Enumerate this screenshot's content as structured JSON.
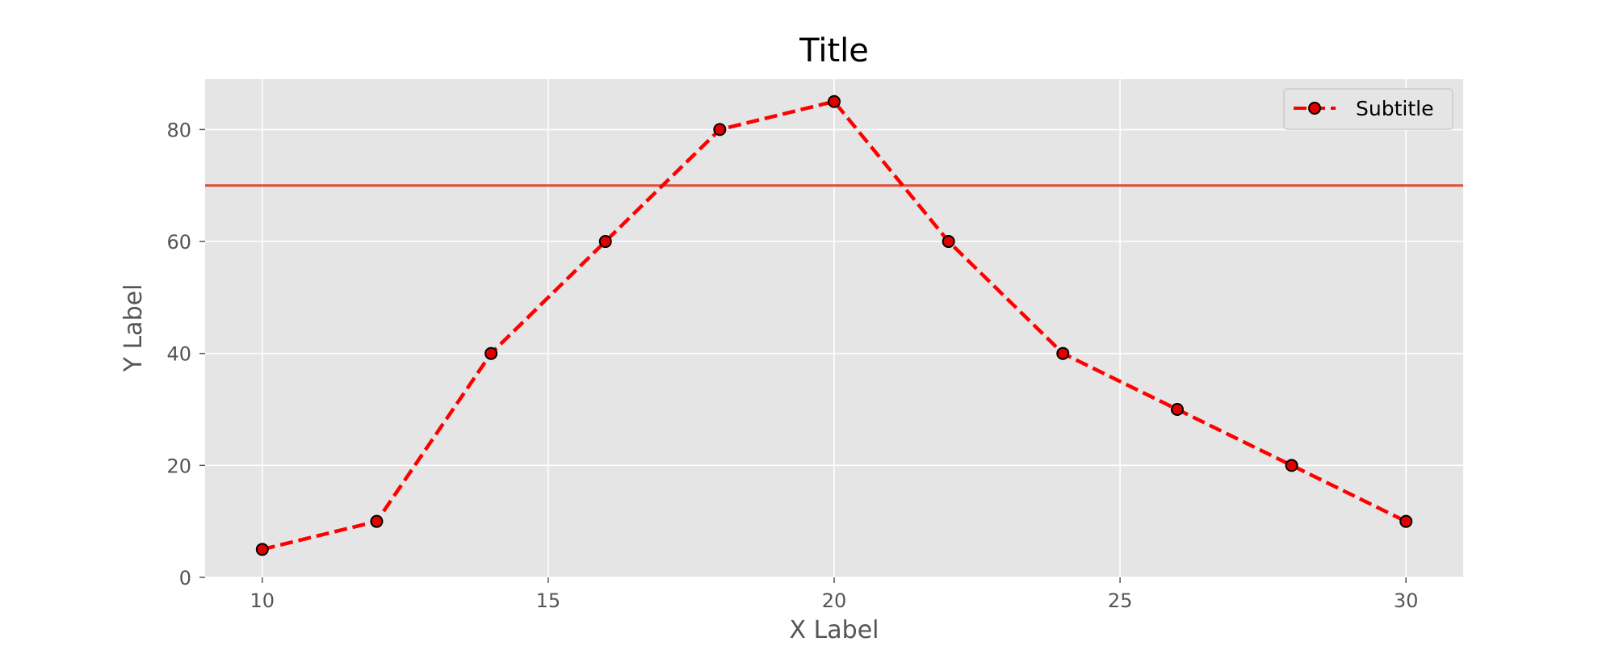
{
  "chart_data": {
    "type": "line",
    "title": "Title",
    "xlabel": "X Label",
    "ylabel": "Y Label",
    "xlim": [
      9,
      31
    ],
    "ylim": [
      0,
      89
    ],
    "xticks": [
      10,
      15,
      20,
      25,
      30
    ],
    "yticks": [
      0,
      20,
      40,
      60,
      80
    ],
    "grid": true,
    "legend_position": "upper right",
    "series": [
      {
        "name": "Subtitle",
        "x": [
          10,
          12,
          14,
          16,
          18,
          20,
          22,
          24,
          26,
          28,
          30
        ],
        "y": [
          5,
          10,
          40,
          60,
          80,
          85,
          60,
          40,
          30,
          20,
          10
        ],
        "line_color": "#ff0000",
        "line_style": "dashed",
        "marker": "circle",
        "marker_face_color": "#e00000",
        "marker_edge_color": "#000000"
      }
    ],
    "hlines": [
      {
        "y": 70,
        "color": "#e24a33"
      }
    ],
    "colors": {
      "plot_background": "#e5e5e5",
      "grid": "#ffffff",
      "tick_text": "#555555"
    }
  }
}
